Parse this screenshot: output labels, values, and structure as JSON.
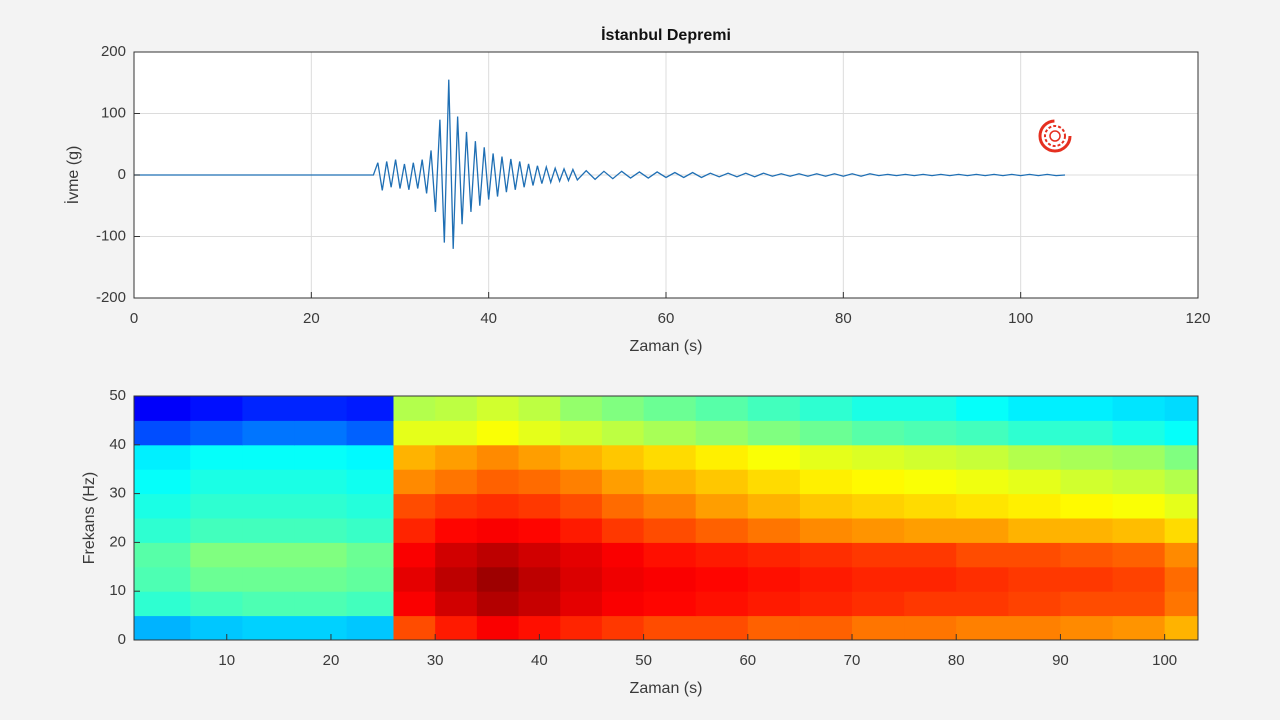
{
  "chart_data": [
    {
      "type": "line",
      "title": "İstanbul Depremi",
      "xlabel": "Zaman (s)",
      "ylabel": "İvme (g)",
      "xlim": [
        0,
        120
      ],
      "ylim": [
        -200,
        200
      ],
      "xticks": [
        0,
        20,
        40,
        60,
        80,
        100,
        120
      ],
      "yticks": [
        -200,
        -100,
        0,
        100,
        200
      ],
      "grid": true,
      "x": [
        0,
        10,
        20,
        26.5,
        27,
        27.5,
        28,
        28.5,
        29,
        29.5,
        30,
        30.5,
        31,
        31.5,
        32,
        32.5,
        33,
        33.5,
        34,
        34.5,
        35,
        35.5,
        36,
        36.5,
        37,
        37.5,
        38,
        38.5,
        39,
        39.5,
        40,
        40.5,
        41,
        41.5,
        42,
        42.5,
        43,
        43.5,
        44,
        44.5,
        45,
        45.5,
        46,
        46.5,
        47,
        47.5,
        48,
        48.5,
        49,
        49.5,
        50,
        51,
        52,
        53,
        54,
        55,
        56,
        57,
        58,
        59,
        60,
        61,
        62,
        63,
        64,
        65,
        66,
        67,
        68,
        69,
        70,
        71,
        72,
        73,
        74,
        75,
        76,
        77,
        78,
        79,
        80,
        81,
        82,
        83,
        84,
        85,
        86,
        87,
        88,
        89,
        90,
        91,
        92,
        93,
        94,
        95,
        96,
        97,
        98,
        99,
        100,
        101,
        102,
        103,
        104,
        105
      ],
      "series": [
        {
          "color": "#1f6fb4",
          "values": [
            0,
            0,
            0,
            0,
            0,
            20,
            -25,
            22,
            -20,
            25,
            -22,
            18,
            -24,
            20,
            -22,
            25,
            -30,
            40,
            -60,
            90,
            -110,
            155,
            -120,
            95,
            -80,
            70,
            -60,
            55,
            -50,
            45,
            -40,
            35,
            -35,
            30,
            -28,
            26,
            -24,
            22,
            -20,
            18,
            -17,
            15,
            -14,
            13,
            -12,
            11,
            -10,
            10,
            -9,
            9,
            -8,
            7,
            -7,
            6,
            -6,
            6,
            -5,
            5,
            -5,
            5,
            -4,
            4,
            -4,
            4,
            -4,
            3,
            -3,
            3,
            -3,
            3,
            -3,
            3,
            -2,
            2,
            -2,
            2,
            -2,
            2,
            -2,
            2,
            -2,
            2,
            -2,
            2,
            -1,
            1,
            -1,
            1,
            -1,
            1,
            -1,
            1,
            -1,
            1,
            -1,
            1,
            -1,
            1,
            -1,
            1,
            -1,
            1,
            -1,
            1,
            -1,
            0
          ]
        }
      ]
    },
    {
      "type": "heatmap",
      "xlabel": "Zaman (s)",
      "ylabel": "Frekans (Hz)",
      "xlim": [
        1.1,
        103.2
      ],
      "ylim": [
        0,
        50
      ],
      "xticks": [
        10,
        20,
        30,
        40,
        50,
        60,
        70,
        80,
        90,
        100
      ],
      "yticks": [
        0,
        10,
        20,
        30,
        40,
        50
      ],
      "colormap": "jet",
      "clim": [
        0,
        1
      ],
      "xbins": [
        1.1,
        6.5,
        11.5,
        16.5,
        21.5,
        26,
        30,
        34,
        38,
        42,
        46,
        50,
        55,
        60,
        65,
        70,
        75,
        80,
        85,
        90,
        95,
        100,
        103.2
      ],
      "ybins": [
        0,
        5,
        10,
        15,
        20,
        25,
        30,
        35,
        40,
        45,
        50
      ],
      "values": [
        [
          0.3,
          0.32,
          0.33,
          0.33,
          0.32,
          0.8,
          0.85,
          0.88,
          0.86,
          0.84,
          0.82,
          0.8,
          0.8,
          0.78,
          0.78,
          0.76,
          0.76,
          0.75,
          0.75,
          0.74,
          0.73,
          0.7
        ],
        [
          0.42,
          0.44,
          0.45,
          0.45,
          0.44,
          0.88,
          0.92,
          0.95,
          0.93,
          0.9,
          0.88,
          0.87,
          0.86,
          0.85,
          0.84,
          0.83,
          0.82,
          0.82,
          0.81,
          0.8,
          0.8,
          0.76
        ],
        [
          0.45,
          0.48,
          0.48,
          0.48,
          0.47,
          0.9,
          0.94,
          0.97,
          0.94,
          0.91,
          0.89,
          0.88,
          0.87,
          0.86,
          0.85,
          0.84,
          0.84,
          0.83,
          0.82,
          0.82,
          0.81,
          0.77
        ],
        [
          0.46,
          0.5,
          0.5,
          0.5,
          0.48,
          0.88,
          0.92,
          0.94,
          0.92,
          0.9,
          0.88,
          0.86,
          0.85,
          0.84,
          0.83,
          0.82,
          0.82,
          0.8,
          0.8,
          0.79,
          0.78,
          0.74
        ],
        [
          0.42,
          0.44,
          0.44,
          0.44,
          0.43,
          0.84,
          0.87,
          0.88,
          0.87,
          0.85,
          0.82,
          0.8,
          0.78,
          0.76,
          0.74,
          0.73,
          0.72,
          0.72,
          0.7,
          0.7,
          0.69,
          0.66
        ],
        [
          0.4,
          0.42,
          0.42,
          0.42,
          0.41,
          0.8,
          0.82,
          0.83,
          0.82,
          0.8,
          0.77,
          0.75,
          0.72,
          0.7,
          0.68,
          0.67,
          0.66,
          0.65,
          0.64,
          0.63,
          0.62,
          0.6
        ],
        [
          0.38,
          0.4,
          0.4,
          0.4,
          0.39,
          0.74,
          0.76,
          0.78,
          0.77,
          0.75,
          0.72,
          0.7,
          0.68,
          0.66,
          0.64,
          0.63,
          0.62,
          0.61,
          0.6,
          0.58,
          0.57,
          0.55
        ],
        [
          0.36,
          0.38,
          0.38,
          0.38,
          0.37,
          0.7,
          0.72,
          0.74,
          0.72,
          0.7,
          0.68,
          0.66,
          0.64,
          0.62,
          0.6,
          0.59,
          0.58,
          0.57,
          0.55,
          0.54,
          0.53,
          0.5
        ],
        [
          0.2,
          0.22,
          0.24,
          0.24,
          0.22,
          0.6,
          0.6,
          0.62,
          0.6,
          0.58,
          0.56,
          0.54,
          0.52,
          0.5,
          0.48,
          0.46,
          0.45,
          0.44,
          0.42,
          0.42,
          0.4,
          0.38
        ],
        [
          0.12,
          0.14,
          0.16,
          0.16,
          0.15,
          0.55,
          0.56,
          0.58,
          0.56,
          0.52,
          0.5,
          0.48,
          0.46,
          0.44,
          0.42,
          0.4,
          0.4,
          0.38,
          0.36,
          0.36,
          0.35,
          0.34
        ]
      ]
    }
  ]
}
